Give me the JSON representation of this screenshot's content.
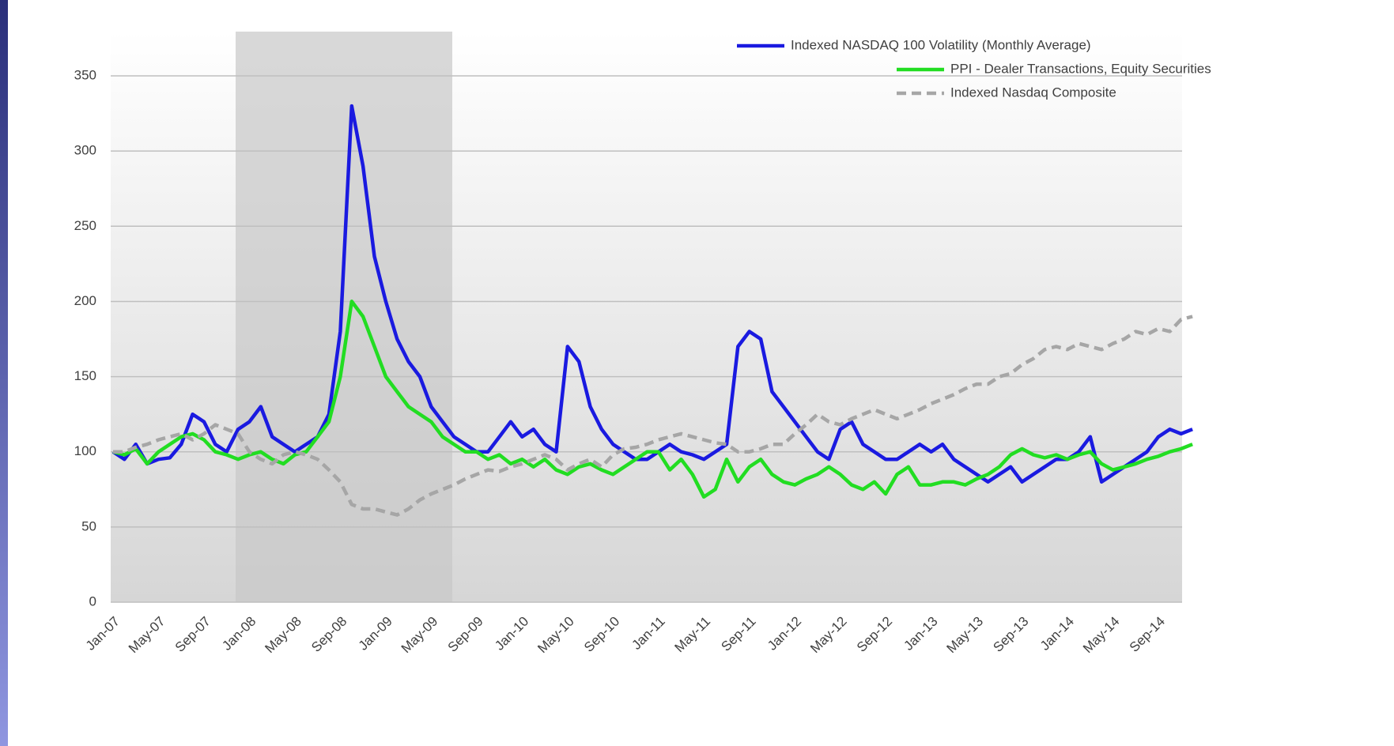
{
  "chart_data": {
    "type": "line",
    "categories": [
      "Jan-07",
      null,
      null,
      null,
      "May-07",
      null,
      null,
      null,
      "Sep-07",
      null,
      null,
      null,
      "Jan-08",
      null,
      null,
      null,
      "May-08",
      null,
      null,
      null,
      "Sep-08",
      null,
      null,
      null,
      "Jan-09",
      null,
      null,
      null,
      "May-09",
      null,
      null,
      null,
      "Sep-09",
      null,
      null,
      null,
      "Jan-10",
      null,
      null,
      null,
      "May-10",
      null,
      null,
      null,
      "Sep-10",
      null,
      null,
      null,
      "Jan-11",
      null,
      null,
      null,
      "May-11",
      null,
      null,
      null,
      "Sep-11",
      null,
      null,
      null,
      "Jan-12",
      null,
      null,
      null,
      "May-12",
      null,
      null,
      null,
      "Sep-12",
      null,
      null,
      null,
      "Jan-13",
      null,
      null,
      null,
      "May-13",
      null,
      null,
      null,
      "Sep-13",
      null,
      null,
      null,
      "Jan-14",
      null,
      null,
      null,
      "May-14",
      null,
      null,
      null,
      "Sep-14",
      null,
      null,
      null
    ],
    "series": [
      {
        "name": "Indexed NASDAQ 100 Volatility (Monthly Average)",
        "color": "#1a1ae0",
        "dash": false,
        "values": [
          100,
          95,
          105,
          92,
          95,
          96,
          105,
          125,
          120,
          105,
          100,
          115,
          120,
          130,
          110,
          105,
          100,
          105,
          110,
          125,
          180,
          330,
          290,
          230,
          200,
          175,
          160,
          150,
          130,
          120,
          110,
          105,
          100,
          100,
          110,
          120,
          110,
          115,
          105,
          100,
          170,
          160,
          130,
          115,
          105,
          100,
          95,
          95,
          100,
          105,
          100,
          98,
          95,
          100,
          105,
          170,
          180,
          175,
          140,
          130,
          120,
          110,
          100,
          95,
          115,
          120,
          105,
          100,
          95,
          95,
          100,
          105,
          100,
          105,
          95,
          90,
          85,
          80,
          85,
          90,
          80,
          85,
          90,
          95,
          95,
          100,
          110,
          80,
          85,
          90,
          95,
          100,
          110,
          115,
          112,
          115
        ]
      },
      {
        "name": "PPI - Dealer Transactions, Equity Securities",
        "color": "#22dd22",
        "dash": false,
        "values": [
          100,
          98,
          102,
          92,
          100,
          105,
          110,
          112,
          108,
          100,
          98,
          95,
          98,
          100,
          95,
          92,
          98,
          100,
          110,
          120,
          150,
          200,
          190,
          170,
          150,
          140,
          130,
          125,
          120,
          110,
          105,
          100,
          100,
          95,
          98,
          92,
          95,
          90,
          95,
          88,
          85,
          90,
          92,
          88,
          85,
          90,
          95,
          100,
          100,
          88,
          95,
          85,
          70,
          75,
          95,
          80,
          90,
          95,
          85,
          80,
          78,
          82,
          85,
          90,
          85,
          78,
          75,
          80,
          72,
          85,
          90,
          78,
          78,
          80,
          80,
          78,
          82,
          85,
          90,
          98,
          102,
          98,
          96,
          98,
          95,
          98,
          100,
          92,
          88,
          90,
          92,
          95,
          97,
          100,
          102,
          105
        ]
      },
      {
        "name": "Indexed Nasdaq Composite",
        "color": "#a6a6a6",
        "dash": true,
        "values": [
          100,
          100,
          103,
          105,
          108,
          110,
          112,
          108,
          112,
          118,
          115,
          112,
          100,
          95,
          92,
          98,
          100,
          98,
          95,
          88,
          80,
          65,
          62,
          62,
          60,
          58,
          62,
          68,
          72,
          75,
          78,
          82,
          85,
          88,
          87,
          90,
          92,
          95,
          98,
          95,
          88,
          92,
          95,
          90,
          98,
          102,
          103,
          105,
          108,
          110,
          112,
          110,
          108,
          106,
          105,
          100,
          100,
          102,
          105,
          105,
          112,
          118,
          125,
          120,
          118,
          122,
          125,
          128,
          125,
          122,
          125,
          128,
          132,
          135,
          138,
          142,
          145,
          145,
          150,
          152,
          158,
          162,
          168,
          170,
          168,
          172,
          170,
          168,
          172,
          175,
          180,
          178,
          182,
          180,
          188,
          190
        ]
      }
    ],
    "ylim": [
      0,
      360
    ],
    "yticks": [
      0,
      50,
      100,
      150,
      200,
      250,
      300,
      350
    ],
    "grid": true,
    "legend": "top-right"
  }
}
